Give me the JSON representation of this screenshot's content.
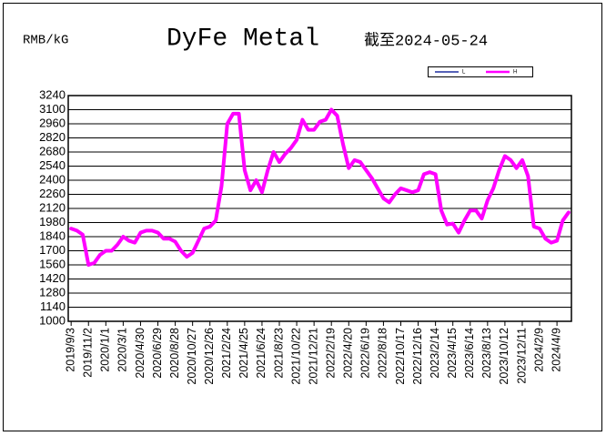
{
  "chart_data": {
    "type": "line",
    "title": "DyFe Metal",
    "subtitle": "截至2024-05-24",
    "y_label": "RMB/kG",
    "legend": "top-right",
    "grid": true,
    "ylim": [
      1000,
      3240
    ],
    "yticks": [
      1000,
      1140,
      1280,
      1420,
      1560,
      1700,
      1840,
      1980,
      2120,
      2260,
      2400,
      2540,
      2680,
      2820,
      2960,
      3100,
      3240
    ],
    "categories": [
      "2019/9/3",
      null,
      null,
      "2019/11/2",
      null,
      null,
      "2020/1/1",
      null,
      null,
      "2020/3/1",
      null,
      null,
      "2020/4/30",
      null,
      null,
      "2020/6/29",
      null,
      null,
      "2020/8/28",
      null,
      null,
      "2020/10/27",
      null,
      null,
      "2020/12/26",
      null,
      null,
      "2021/2/24",
      null,
      null,
      "2021/4/25",
      null,
      null,
      "2021/6/24",
      null,
      null,
      "2021/8/23",
      null,
      null,
      "2021/10/22",
      null,
      null,
      "2021/12/21",
      null,
      null,
      "2022/2/19",
      null,
      null,
      "2022/4/20",
      null,
      null,
      "2022/6/19",
      null,
      null,
      "2022/8/18",
      null,
      null,
      "2022/10/17",
      null,
      null,
      "2022/12/16",
      null,
      null,
      "2023/2/14",
      null,
      null,
      "2023/4/15",
      null,
      null,
      "2023/6/14",
      null,
      null,
      "2023/8/13",
      null,
      null,
      "2023/10/12",
      null,
      null,
      "2023/12/11",
      null,
      null,
      "2024/2/9",
      null,
      null,
      "2024/4/9",
      null,
      null
    ],
    "series": [
      {
        "name": "L",
        "color": "#1f2f9f",
        "width": 1.5,
        "values": [
          1920,
          1900,
          1860,
          1560,
          1580,
          1660,
          1700,
          1700,
          1760,
          1840,
          1800,
          1780,
          1880,
          1900,
          1900,
          1880,
          1820,
          1820,
          1790,
          1700,
          1640,
          1680,
          1800,
          1920,
          1940,
          2000,
          2340,
          2960,
          3060,
          3060,
          2500,
          2300,
          2400,
          2280,
          2500,
          2680,
          2580,
          2660,
          2720,
          2800,
          3000,
          2900,
          2900,
          2980,
          3000,
          3100,
          3040,
          2760,
          2520,
          2600,
          2580,
          2500,
          2420,
          2320,
          2220,
          2180,
          2260,
          2320,
          2300,
          2280,
          2300,
          2460,
          2480,
          2460,
          2100,
          1960,
          1970,
          1880,
          2000,
          2100,
          2100,
          2020,
          2200,
          2320,
          2500,
          2640,
          2600,
          2520,
          2600,
          2440,
          1940,
          1920,
          1820,
          1780,
          1800,
          2000,
          2080
        ]
      },
      {
        "name": "H",
        "color": "#ff00ff",
        "width": 4,
        "values": [
          1920,
          1900,
          1860,
          1560,
          1580,
          1660,
          1700,
          1700,
          1760,
          1840,
          1800,
          1780,
          1880,
          1900,
          1900,
          1880,
          1820,
          1820,
          1790,
          1700,
          1640,
          1680,
          1800,
          1920,
          1940,
          2000,
          2340,
          2960,
          3060,
          3060,
          2500,
          2300,
          2400,
          2280,
          2500,
          2680,
          2580,
          2660,
          2720,
          2800,
          3000,
          2900,
          2900,
          2980,
          3000,
          3100,
          3040,
          2760,
          2520,
          2600,
          2580,
          2500,
          2420,
          2320,
          2220,
          2180,
          2260,
          2320,
          2300,
          2280,
          2300,
          2460,
          2480,
          2460,
          2100,
          1960,
          1970,
          1880,
          2000,
          2100,
          2100,
          2020,
          2200,
          2320,
          2500,
          2640,
          2600,
          2520,
          2600,
          2440,
          1940,
          1920,
          1820,
          1780,
          1800,
          2000,
          2080
        ]
      }
    ]
  }
}
